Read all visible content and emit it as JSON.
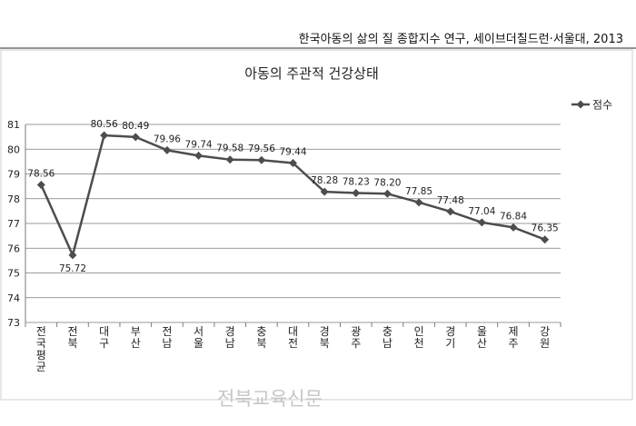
{
  "source_caption": "한국아동의 삶의 질 종합지수 연구, 세이브더칠드런·서울대, 2013",
  "watermark": "전북교육신문",
  "chart_data": {
    "type": "line",
    "title": "아동의 주관적 건강상태",
    "xlabel": "",
    "ylabel": "",
    "ylim": [
      73,
      81
    ],
    "yticks": [
      73,
      74,
      75,
      76,
      77,
      78,
      79,
      80,
      81
    ],
    "grid": true,
    "legend_position": "top-right",
    "categories": [
      "전국평균",
      "전북",
      "대구",
      "부산",
      "전남",
      "서울",
      "경남",
      "충북",
      "대전",
      "경북",
      "광주",
      "충남",
      "인천",
      "경기",
      "울산",
      "제주",
      "강원"
    ],
    "series": [
      {
        "name": "점수",
        "color": "#4d4d4d",
        "marker": "diamond",
        "values": [
          78.56,
          75.72,
          80.56,
          80.49,
          79.96,
          79.74,
          79.58,
          79.56,
          79.44,
          78.28,
          78.23,
          78.2,
          77.85,
          77.48,
          77.04,
          76.84,
          76.35
        ],
        "labels": [
          "78.56",
          "75.72",
          "80.56",
          "80.49",
          "79.96",
          "79.74",
          "79.58",
          "79.56",
          "79.44",
          "78.28",
          "78.23",
          "78.20",
          "77.85",
          "77.48",
          "77.04",
          "76.84",
          "76.35"
        ]
      }
    ]
  }
}
